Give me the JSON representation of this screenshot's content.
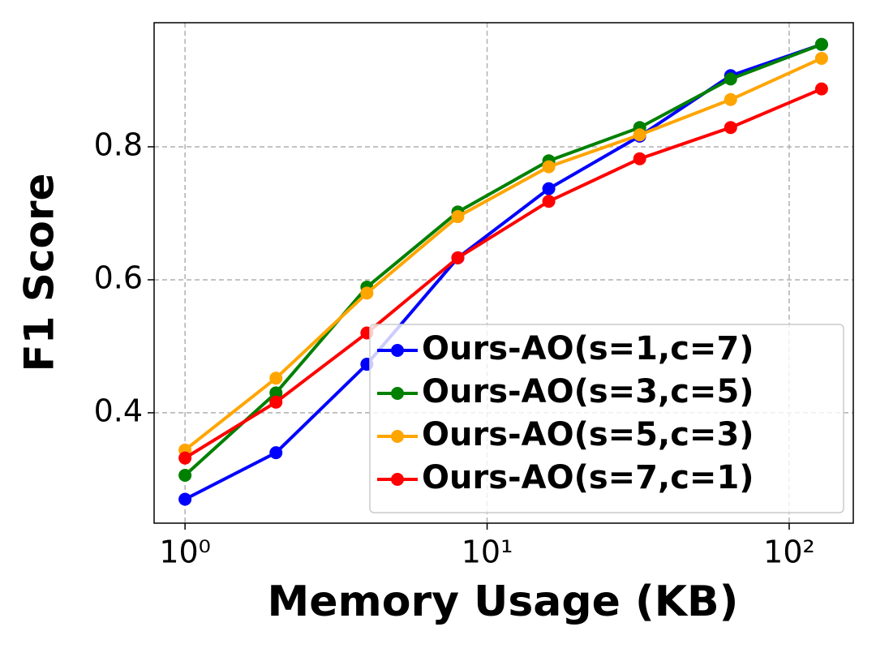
{
  "chart_data": {
    "type": "line",
    "x_label": "Memory Usage (KB)",
    "y_label": "F1 Score",
    "x": [
      1,
      2,
      4,
      8,
      16,
      32,
      64,
      128
    ],
    "xscale": "log",
    "xlim": [
      0.79,
      163
    ],
    "ylim": [
      0.234,
      0.9866
    ],
    "xticks": [
      {
        "value": 1,
        "label": "10⁰"
      },
      {
        "value": 10,
        "label": "10¹"
      },
      {
        "value": 100,
        "label": "10²"
      }
    ],
    "yticks": [
      0.4,
      0.6,
      0.8
    ],
    "grid": true,
    "legend": "lower right",
    "series": [
      {
        "name": "Ours-AO(s=1,c=7)",
        "color": "#0000ff",
        "values": [
          0.27,
          0.34,
          0.473,
          0.633,
          0.737,
          0.816,
          0.907,
          0.954
        ]
      },
      {
        "name": "Ours-AO(s=3,c=5)",
        "color": "#008000",
        "values": [
          0.306,
          0.43,
          0.589,
          0.702,
          0.779,
          0.829,
          0.902,
          0.954
        ]
      },
      {
        "name": "Ours-AO(s=5,c=3)",
        "color": "#ffa500",
        "values": [
          0.344,
          0.452,
          0.58,
          0.695,
          0.77,
          0.818,
          0.871,
          0.933
        ]
      },
      {
        "name": "Ours-AO(s=7,c=1)",
        "color": "#ff0000",
        "values": [
          0.332,
          0.416,
          0.52,
          0.633,
          0.718,
          0.782,
          0.829,
          0.887
        ]
      }
    ]
  }
}
